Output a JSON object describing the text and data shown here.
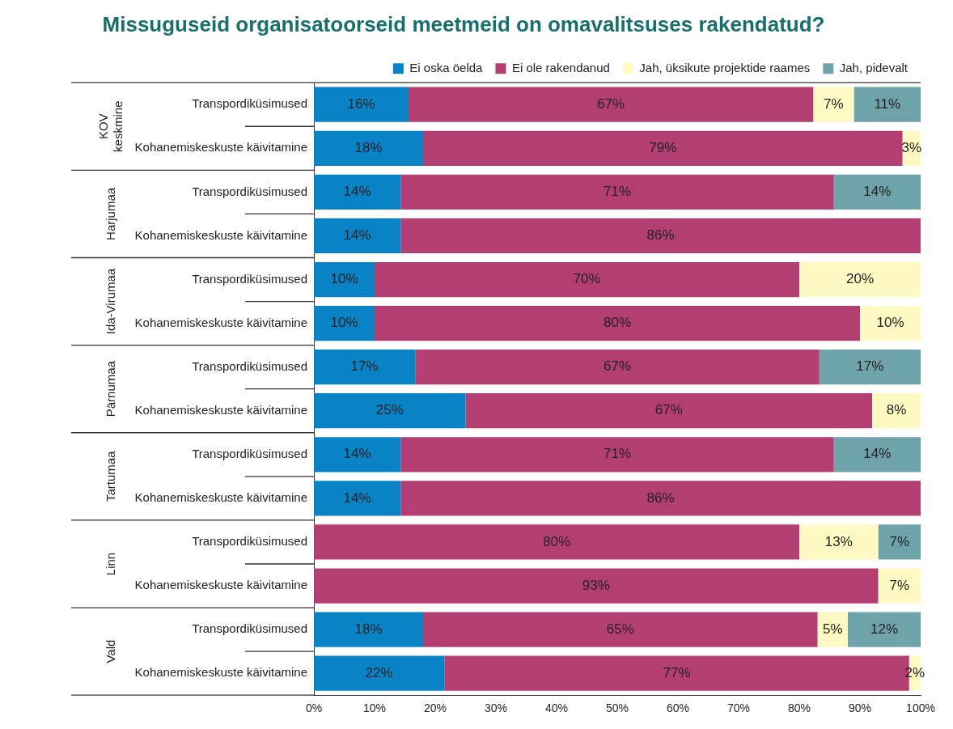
{
  "chart_data": {
    "type": "bar",
    "orientation": "horizontal",
    "stacked": true,
    "title": "Missuguseid organisatoorseid meetmeid on omavalitsuses rakendatud?",
    "categories": [
      "Transpordiküsimused",
      "Kohanemiskeskuste käivitamine",
      "Transpordiküsimused",
      "Kohanemiskeskuste käivitamine",
      "Transpordiküsimused",
      "Kohanemiskeskuste käivitamine",
      "Transpordiküsimused",
      "Kohanemiskeskuste käivitamine",
      "Transpordiküsimused",
      "Kohanemiskeskuste käivitamine",
      "Transpordiküsimused",
      "Kohanemiskeskuste käivitamine",
      "Transpordiküsimused",
      "Kohanemiskeskuste käivitamine"
    ],
    "annotations": [
      "KOV keskmine",
      "Harjumaa",
      "Ida-Virumaa",
      "Pärnumaa",
      "Tartumaa",
      "Linn",
      "Vald"
    ],
    "series": [
      {
        "name": "Ei oska öelda",
        "color": "#0a82c6",
        "values": [
          15.6,
          18,
          14.3,
          14.3,
          10,
          10,
          16.7,
          25,
          14.3,
          14.3,
          null,
          null,
          18,
          21.5
        ],
        "value_labels": [
          "16%",
          "18%",
          "14%",
          "14%",
          "10%",
          "10%",
          "17%",
          "25%",
          "14%",
          "14%",
          null,
          null,
          "18%",
          "22%"
        ]
      },
      {
        "name": "Ei ole rakendanud",
        "color": "#b33f72",
        "values": [
          66.7,
          79,
          71.4,
          85.7,
          70,
          80,
          66.6,
          67,
          71.4,
          85.7,
          80,
          93,
          65,
          76.6
        ],
        "value_labels": [
          "67%",
          "79%",
          "71%",
          "86%",
          "70%",
          "80%",
          "67%",
          "67%",
          "71%",
          "86%",
          "80%",
          "93%",
          "65%",
          "77%"
        ]
      },
      {
        "name": "Jah, üksikute projektide raames",
        "color": "#fff9c4",
        "values": [
          6.7,
          3,
          null,
          null,
          20,
          10,
          null,
          8,
          null,
          null,
          13,
          7,
          5,
          1.9
        ],
        "value_labels": [
          "7%",
          "3%",
          null,
          null,
          "20%",
          "10%",
          null,
          "8%",
          null,
          null,
          "13%",
          "7%",
          "5%",
          "2%"
        ]
      },
      {
        "name": "Jah, pidevalt",
        "color": "#6fa3aa",
        "values": [
          11,
          null,
          14.3,
          null,
          null,
          null,
          16.7,
          null,
          14.3,
          null,
          7,
          null,
          12,
          null
        ],
        "value_labels": [
          "11%",
          null,
          "14%",
          null,
          null,
          null,
          "17%",
          null,
          "14%",
          null,
          "7%",
          null,
          "12%",
          null
        ]
      }
    ],
    "xlim": [
      0,
      100
    ],
    "xticks": [
      {
        "value": 0,
        "label": "0%"
      },
      {
        "value": 10,
        "label": "10%"
      },
      {
        "value": 20,
        "label": "20%"
      },
      {
        "value": 30,
        "label": "30%"
      },
      {
        "value": 40,
        "label": "40%"
      },
      {
        "value": 50,
        "label": "50%"
      },
      {
        "value": 60,
        "label": "60%"
      },
      {
        "value": 70,
        "label": "70%"
      },
      {
        "value": 80,
        "label": "80%"
      },
      {
        "value": 90,
        "label": "90%"
      },
      {
        "value": 100,
        "label": "100%"
      }
    ],
    "legend": "top",
    "grid": false
  }
}
